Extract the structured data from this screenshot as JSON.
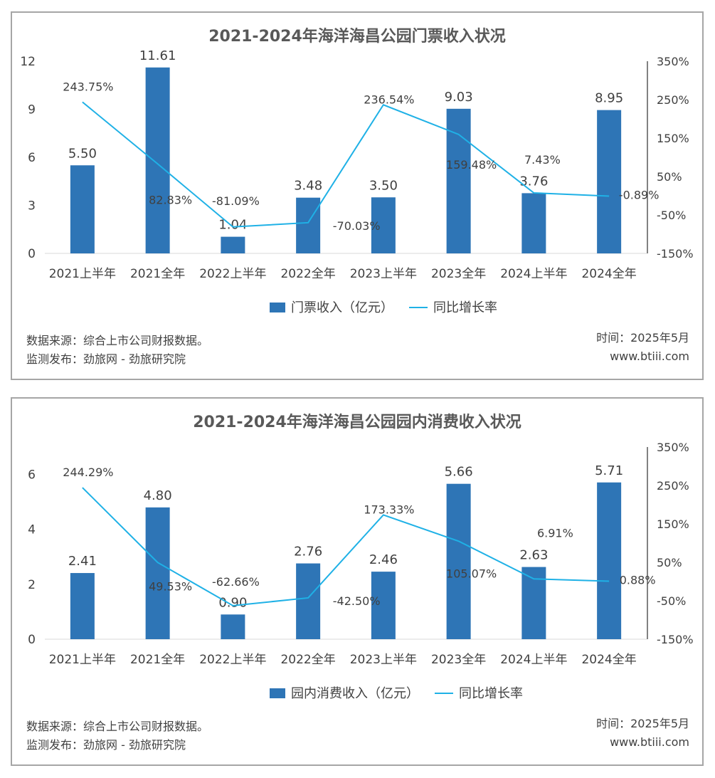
{
  "colors": {
    "bar": "#2e75b6",
    "line": "#1fb1e6",
    "axis": "#595959",
    "text": "#404040",
    "border": "#a6a6a6"
  },
  "chart_data": [
    {
      "type": "bar",
      "title": "2021-2024年海洋海昌公园门票收入状况",
      "categories": [
        "2021上半年",
        "2021全年",
        "2022上半年",
        "2022全年",
        "2023上半年",
        "2023全年",
        "2024上半年",
        "2024全年"
      ],
      "series": [
        {
          "name": "门票收入（亿元）",
          "type": "bar",
          "axis": "left",
          "values": [
            5.5,
            11.61,
            1.04,
            3.48,
            3.5,
            9.03,
            3.76,
            8.95
          ],
          "labels": [
            "5.50",
            "11.61",
            "1.04",
            "3.48",
            "3.50",
            "9.03",
            "3.76",
            "8.95"
          ]
        },
        {
          "name": "同比增长率",
          "type": "line",
          "axis": "right",
          "values": [
            243.75,
            82.83,
            -81.09,
            -70.03,
            236.54,
            159.48,
            7.43,
            -0.89
          ],
          "labels": [
            "243.75%",
            "82.83%",
            "-81.09%",
            "-70.03%",
            "236.54%",
            "159.48%",
            "7.43%",
            "-0.89%"
          ]
        }
      ],
      "y_left": {
        "min": 0,
        "max": 12,
        "ticks": [
          "0",
          "3",
          "6",
          "9",
          "12"
        ]
      },
      "y_right": {
        "min": -150,
        "max": 350,
        "ticks": [
          "-150%",
          "-50%",
          "50%",
          "150%",
          "250%",
          "350%"
        ]
      },
      "legend_position": "bottom"
    },
    {
      "type": "bar",
      "title": "2021-2024年海洋海昌公园园内消费收入状况",
      "categories": [
        "2021上半年",
        "2021全年",
        "2022上半年",
        "2022全年",
        "2023上半年",
        "2023全年",
        "2024上半年",
        "2024全年"
      ],
      "series": [
        {
          "name": "园内消费收入（亿元）",
          "type": "bar",
          "axis": "left",
          "values": [
            2.41,
            4.8,
            0.9,
            2.76,
            2.46,
            5.66,
            2.63,
            5.71
          ],
          "labels": [
            "2.41",
            "4.80",
            "0.90",
            "2.76",
            "2.46",
            "5.66",
            "2.63",
            "5.71"
          ]
        },
        {
          "name": "同比增长率",
          "type": "line",
          "axis": "right",
          "values": [
            244.29,
            49.53,
            -62.66,
            -42.5,
            173.33,
            105.07,
            6.91,
            0.88
          ],
          "labels": [
            "244.29%",
            "49.53%",
            "-62.66%",
            "-42.50%",
            "173.33%",
            "105.07%",
            "6.91%",
            "0.88%"
          ]
        }
      ],
      "y_left": {
        "min": 0,
        "max": 7,
        "ticks": [
          "0",
          "2",
          "4",
          "6"
        ]
      },
      "y_right": {
        "min": -150,
        "max": 350,
        "ticks": [
          "-150%",
          "-50%",
          "50%",
          "150%",
          "250%",
          "350%"
        ]
      },
      "legend_position": "bottom"
    }
  ],
  "footer": {
    "source": "数据来源：综合上市公司财报数据。",
    "publisher": "监测发布：劲旅网 - 劲旅研究院",
    "time": "时间：2025年5月",
    "website": "www.btiii.com"
  }
}
